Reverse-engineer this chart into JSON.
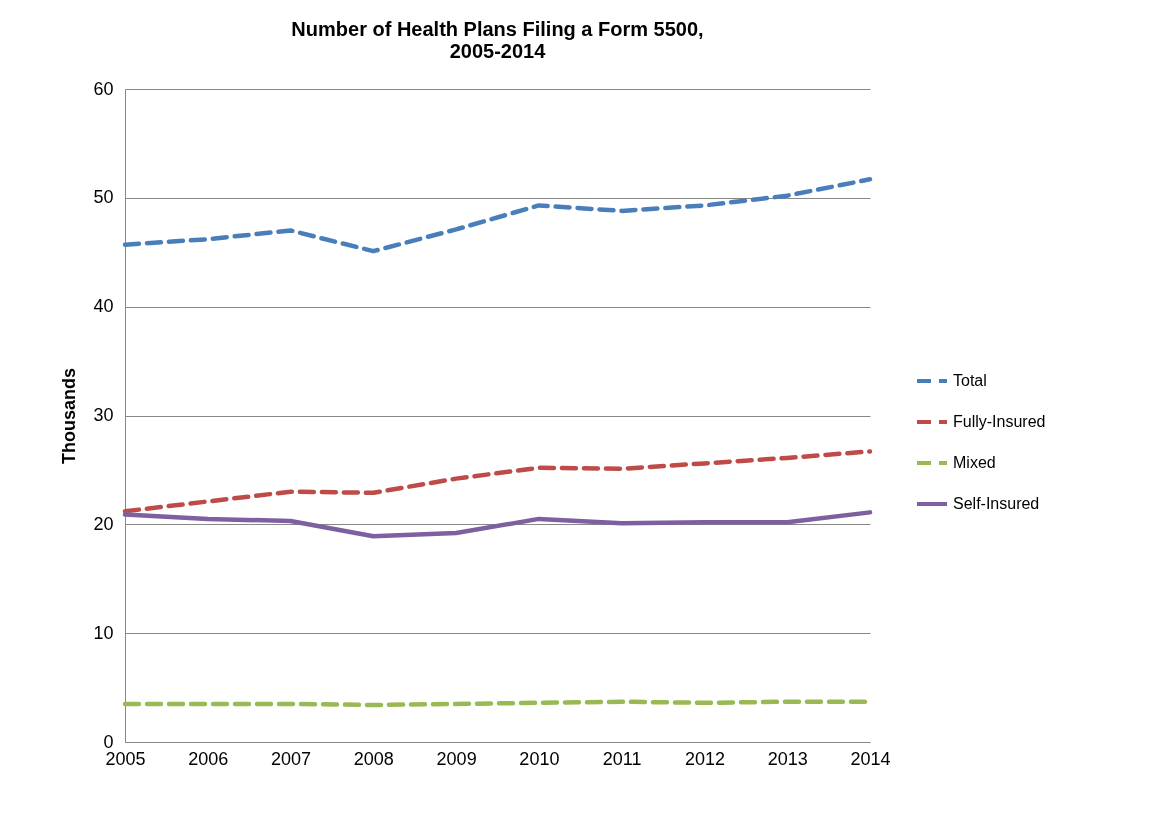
{
  "chart_data": {
    "type": "line",
    "title": "Number of Health Plans Filing a Form 5500, 2005-2014",
    "ylabel": "Thousands",
    "x": [
      2005,
      2006,
      2007,
      2008,
      2009,
      2010,
      2011,
      2012,
      2013,
      2014
    ],
    "series": [
      {
        "name": "Total",
        "color": "#4a7ebb",
        "line_style": "dashed",
        "values": [
          45.7,
          46.2,
          47.0,
          45.1,
          47.1,
          49.3,
          48.8,
          49.3,
          50.2,
          51.7
        ]
      },
      {
        "name": "Fully-Insured",
        "color": "#be4b48",
        "line_style": "dashed",
        "values": [
          21.2,
          22.1,
          23.0,
          22.9,
          24.2,
          25.2,
          25.1,
          25.6,
          26.1,
          26.7
        ]
      },
      {
        "name": "Mixed",
        "color": "#98b954",
        "line_style": "dashed",
        "values": [
          3.5,
          3.5,
          3.5,
          3.4,
          3.5,
          3.6,
          3.7,
          3.6,
          3.7,
          3.7
        ]
      },
      {
        "name": "Self-Insured",
        "color": "#7d60a0",
        "line_style": "solid",
        "values": [
          20.9,
          20.5,
          20.3,
          18.9,
          19.2,
          20.5,
          20.1,
          20.2,
          20.2,
          21.1
        ]
      }
    ],
    "xlim": [
      2005,
      2014
    ],
    "xticks": [
      2005,
      2006,
      2007,
      2008,
      2009,
      2010,
      2011,
      2012,
      2013,
      2014
    ],
    "ylim": [
      0,
      60
    ],
    "yticks": [
      0,
      10,
      20,
      30,
      40,
      50,
      60
    ],
    "grid": "y",
    "legend": "right",
    "marker": "none"
  }
}
